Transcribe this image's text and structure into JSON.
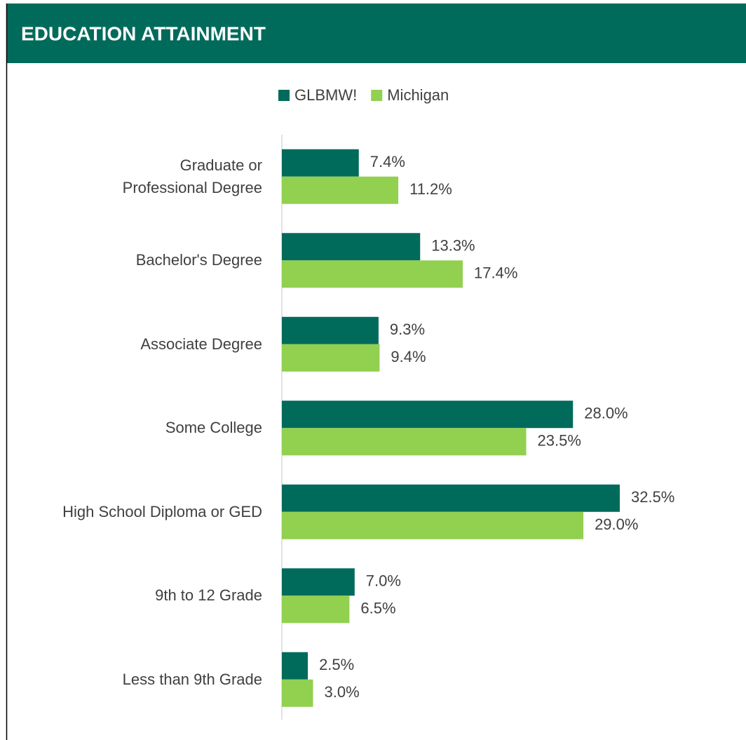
{
  "chart_data": {
    "type": "hbar",
    "title": "EDUCATION ATTAINMENT",
    "categories": [
      "Graduate or\nProfessional Degree",
      "Bachelor's Degree",
      "Associate Degree",
      "Some College",
      "High School Diploma or GED",
      "9th to 12 Grade",
      "Less than 9th Grade"
    ],
    "series": [
      {
        "name": "GLBMW!",
        "color": "#006b5b",
        "values": [
          7.4,
          13.3,
          9.3,
          28.0,
          32.5,
          7.0,
          2.5
        ],
        "value_labels": [
          "7.4%",
          "13.3%",
          "9.3%",
          "28.0%",
          "32.5%",
          "7.0%",
          "2.5%"
        ]
      },
      {
        "name": "Michigan",
        "color": "#92d050",
        "values": [
          11.2,
          17.4,
          9.4,
          23.5,
          29.0,
          6.5,
          3.0
        ],
        "value_labels": [
          "11.2%",
          "17.4%",
          "9.4%",
          "23.5%",
          "29.0%",
          "6.5%",
          "3.0%"
        ]
      }
    ],
    "xlim": [
      0,
      35
    ],
    "legend": "top"
  }
}
